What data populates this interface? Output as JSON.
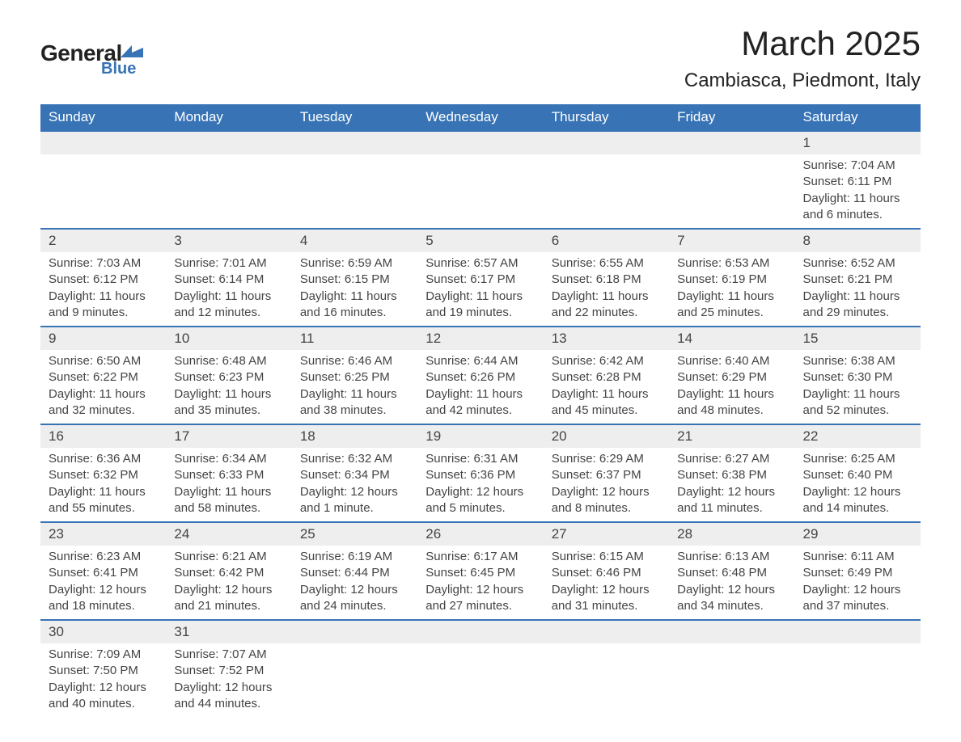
{
  "logo": {
    "general": "General",
    "blue": "Blue"
  },
  "title": "March 2025",
  "subtitle": "Cambiasca, Piedmont, Italy",
  "colors": {
    "header_bg": "#3773b5",
    "header_text": "#ffffff",
    "day_number_bg": "#eeeeee",
    "text": "#444444",
    "border": "#3773b5"
  },
  "weekdays": [
    "Sunday",
    "Monday",
    "Tuesday",
    "Wednesday",
    "Thursday",
    "Friday",
    "Saturday"
  ],
  "labels": {
    "sunrise": "Sunrise:",
    "sunset": "Sunset:",
    "daylight": "Daylight:"
  },
  "weeks": [
    [
      null,
      null,
      null,
      null,
      null,
      null,
      {
        "day": "1",
        "sunrise": "7:04 AM",
        "sunset": "6:11 PM",
        "daylight": "11 hours and 6 minutes."
      }
    ],
    [
      {
        "day": "2",
        "sunrise": "7:03 AM",
        "sunset": "6:12 PM",
        "daylight": "11 hours and 9 minutes."
      },
      {
        "day": "3",
        "sunrise": "7:01 AM",
        "sunset": "6:14 PM",
        "daylight": "11 hours and 12 minutes."
      },
      {
        "day": "4",
        "sunrise": "6:59 AM",
        "sunset": "6:15 PM",
        "daylight": "11 hours and 16 minutes."
      },
      {
        "day": "5",
        "sunrise": "6:57 AM",
        "sunset": "6:17 PM",
        "daylight": "11 hours and 19 minutes."
      },
      {
        "day": "6",
        "sunrise": "6:55 AM",
        "sunset": "6:18 PM",
        "daylight": "11 hours and 22 minutes."
      },
      {
        "day": "7",
        "sunrise": "6:53 AM",
        "sunset": "6:19 PM",
        "daylight": "11 hours and 25 minutes."
      },
      {
        "day": "8",
        "sunrise": "6:52 AM",
        "sunset": "6:21 PM",
        "daylight": "11 hours and 29 minutes."
      }
    ],
    [
      {
        "day": "9",
        "sunrise": "6:50 AM",
        "sunset": "6:22 PM",
        "daylight": "11 hours and 32 minutes."
      },
      {
        "day": "10",
        "sunrise": "6:48 AM",
        "sunset": "6:23 PM",
        "daylight": "11 hours and 35 minutes."
      },
      {
        "day": "11",
        "sunrise": "6:46 AM",
        "sunset": "6:25 PM",
        "daylight": "11 hours and 38 minutes."
      },
      {
        "day": "12",
        "sunrise": "6:44 AM",
        "sunset": "6:26 PM",
        "daylight": "11 hours and 42 minutes."
      },
      {
        "day": "13",
        "sunrise": "6:42 AM",
        "sunset": "6:28 PM",
        "daylight": "11 hours and 45 minutes."
      },
      {
        "day": "14",
        "sunrise": "6:40 AM",
        "sunset": "6:29 PM",
        "daylight": "11 hours and 48 minutes."
      },
      {
        "day": "15",
        "sunrise": "6:38 AM",
        "sunset": "6:30 PM",
        "daylight": "11 hours and 52 minutes."
      }
    ],
    [
      {
        "day": "16",
        "sunrise": "6:36 AM",
        "sunset": "6:32 PM",
        "daylight": "11 hours and 55 minutes."
      },
      {
        "day": "17",
        "sunrise": "6:34 AM",
        "sunset": "6:33 PM",
        "daylight": "11 hours and 58 minutes."
      },
      {
        "day": "18",
        "sunrise": "6:32 AM",
        "sunset": "6:34 PM",
        "daylight": "12 hours and 1 minute."
      },
      {
        "day": "19",
        "sunrise": "6:31 AM",
        "sunset": "6:36 PM",
        "daylight": "12 hours and 5 minutes."
      },
      {
        "day": "20",
        "sunrise": "6:29 AM",
        "sunset": "6:37 PM",
        "daylight": "12 hours and 8 minutes."
      },
      {
        "day": "21",
        "sunrise": "6:27 AM",
        "sunset": "6:38 PM",
        "daylight": "12 hours and 11 minutes."
      },
      {
        "day": "22",
        "sunrise": "6:25 AM",
        "sunset": "6:40 PM",
        "daylight": "12 hours and 14 minutes."
      }
    ],
    [
      {
        "day": "23",
        "sunrise": "6:23 AM",
        "sunset": "6:41 PM",
        "daylight": "12 hours and 18 minutes."
      },
      {
        "day": "24",
        "sunrise": "6:21 AM",
        "sunset": "6:42 PM",
        "daylight": "12 hours and 21 minutes."
      },
      {
        "day": "25",
        "sunrise": "6:19 AM",
        "sunset": "6:44 PM",
        "daylight": "12 hours and 24 minutes."
      },
      {
        "day": "26",
        "sunrise": "6:17 AM",
        "sunset": "6:45 PM",
        "daylight": "12 hours and 27 minutes."
      },
      {
        "day": "27",
        "sunrise": "6:15 AM",
        "sunset": "6:46 PM",
        "daylight": "12 hours and 31 minutes."
      },
      {
        "day": "28",
        "sunrise": "6:13 AM",
        "sunset": "6:48 PM",
        "daylight": "12 hours and 34 minutes."
      },
      {
        "day": "29",
        "sunrise": "6:11 AM",
        "sunset": "6:49 PM",
        "daylight": "12 hours and 37 minutes."
      }
    ],
    [
      {
        "day": "30",
        "sunrise": "7:09 AM",
        "sunset": "7:50 PM",
        "daylight": "12 hours and 40 minutes."
      },
      {
        "day": "31",
        "sunrise": "7:07 AM",
        "sunset": "7:52 PM",
        "daylight": "12 hours and 44 minutes."
      },
      null,
      null,
      null,
      null,
      null
    ]
  ]
}
